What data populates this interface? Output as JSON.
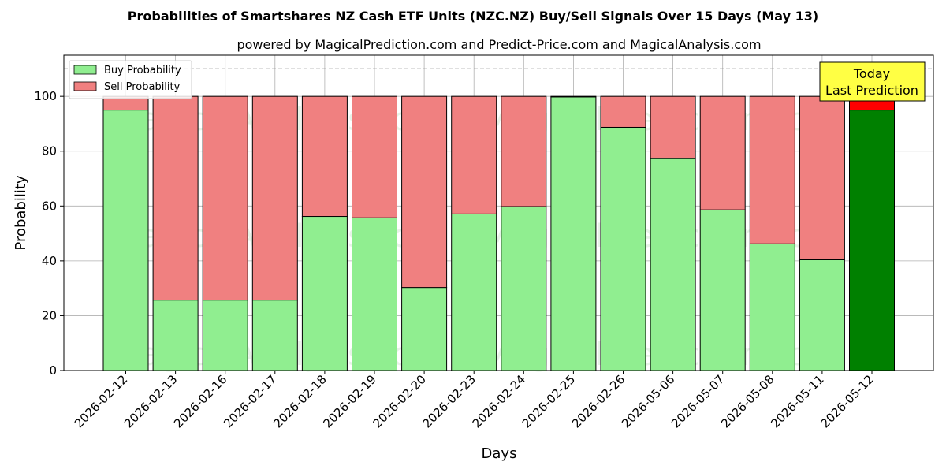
{
  "chart_data": {
    "type": "bar",
    "stacked": true,
    "title": "Probabilities of Smartshares NZ Cash ETF Units (NZC.NZ) Buy/Sell Signals Over 15 Days (May 13)",
    "subtitle": "powered by MagicalPrediction.com and Predict-Price.com and MagicalAnalysis.com",
    "xlabel": "Days",
    "ylabel": "Probability",
    "ylim": [
      0,
      115
    ],
    "yticks": [
      0,
      20,
      40,
      60,
      80,
      100
    ],
    "reference_line": 110,
    "grid": true,
    "legend_position": "top-left",
    "categories": [
      "2026-02-12",
      "2026-02-13",
      "2026-02-16",
      "2026-02-17",
      "2026-02-18",
      "2026-02-19",
      "2026-02-20",
      "2026-02-23",
      "2026-02-24",
      "2026-02-25",
      "2026-02-26",
      "2026-05-06",
      "2026-05-07",
      "2026-05-08",
      "2026-05-11",
      "2026-05-12"
    ],
    "series": [
      {
        "name": "Buy Probability",
        "color": "#90ee90",
        "highlight_color": "#008000",
        "values": [
          95.0,
          25.7,
          25.7,
          25.7,
          56.2,
          55.7,
          30.3,
          57.1,
          59.8,
          99.8,
          88.7,
          77.3,
          58.6,
          46.2,
          40.4,
          95.0
        ]
      },
      {
        "name": "Sell Probability",
        "color": "#f08080",
        "highlight_color": "#ff0000",
        "values": [
          5.0,
          74.3,
          74.3,
          74.3,
          43.8,
          44.3,
          69.7,
          42.9,
          40.2,
          0.2,
          11.3,
          22.7,
          41.4,
          53.8,
          59.6,
          5.0
        ]
      }
    ],
    "annotation": {
      "line1": "Today",
      "line2": "Last Prediction",
      "background": "#ffff44"
    },
    "watermarks": [
      "MagicalAnalysis.com",
      "MagicalPrediction.com"
    ]
  }
}
